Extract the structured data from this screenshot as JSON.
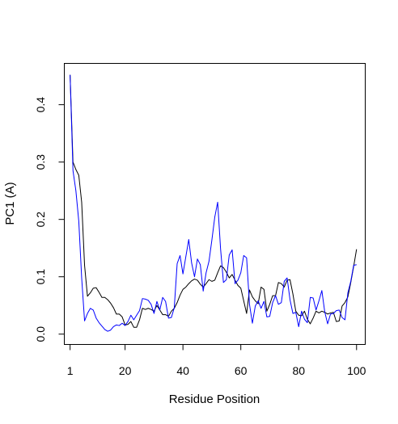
{
  "chart_data": {
    "type": "line",
    "title": "",
    "xlabel": "Residue Position",
    "ylabel": "PC1 (A)",
    "xlim": [
      -1,
      103
    ],
    "ylim": [
      -0.018,
      0.472
    ],
    "xticks": [
      1,
      20,
      40,
      60,
      80,
      100
    ],
    "yticks": [
      0.0,
      0.1,
      0.2,
      0.3,
      0.4
    ],
    "grid": false,
    "legend": "none",
    "x": [
      1,
      2,
      3,
      4,
      5,
      6,
      7,
      8,
      9,
      10,
      11,
      12,
      13,
      14,
      15,
      16,
      17,
      18,
      19,
      20,
      21,
      22,
      23,
      24,
      25,
      26,
      27,
      28,
      29,
      30,
      31,
      32,
      33,
      34,
      35,
      36,
      37,
      38,
      39,
      40,
      41,
      42,
      43,
      44,
      45,
      46,
      47,
      48,
      49,
      50,
      51,
      52,
      53,
      54,
      55,
      56,
      57,
      58,
      59,
      60,
      61,
      62,
      63,
      64,
      65,
      66,
      67,
      68,
      69,
      70,
      71,
      72,
      73,
      74,
      75,
      76,
      77,
      78,
      79,
      80,
      81,
      82,
      83,
      84,
      85,
      86,
      87,
      88,
      89,
      90,
      91,
      92,
      93,
      94,
      95,
      96,
      97,
      98,
      99,
      100
    ],
    "series": [
      {
        "color": "#000000",
        "values": [
          0.452,
          0.3,
          0.287,
          0.277,
          0.23,
          0.12,
          0.066,
          0.072,
          0.08,
          0.081,
          0.073,
          0.064,
          0.064,
          0.06,
          0.054,
          0.046,
          0.035,
          0.035,
          0.03,
          0.016,
          0.017,
          0.022,
          0.012,
          0.012,
          0.025,
          0.045,
          0.043,
          0.045,
          0.043,
          0.04,
          0.05,
          0.042,
          0.034,
          0.034,
          0.031,
          0.04,
          0.045,
          0.055,
          0.068,
          0.078,
          0.082,
          0.088,
          0.093,
          0.096,
          0.094,
          0.087,
          0.082,
          0.088,
          0.095,
          0.092,
          0.094,
          0.107,
          0.119,
          0.116,
          0.108,
          0.098,
          0.104,
          0.094,
          0.085,
          0.08,
          0.058,
          0.036,
          0.077,
          0.065,
          0.058,
          0.053,
          0.082,
          0.078,
          0.04,
          0.052,
          0.067,
          0.067,
          0.09,
          0.088,
          0.082,
          0.094,
          0.095,
          0.07,
          0.04,
          0.033,
          0.032,
          0.04,
          0.026,
          0.018,
          0.028,
          0.04,
          0.037,
          0.04,
          0.038,
          0.035,
          0.037,
          0.038,
          0.022,
          0.023,
          0.049,
          0.055,
          0.065,
          0.09,
          0.118,
          0.148
        ]
      },
      {
        "color": "#0000ff",
        "values": [
          0.452,
          0.285,
          0.25,
          0.197,
          0.098,
          0.023,
          0.036,
          0.045,
          0.042,
          0.028,
          0.02,
          0.014,
          0.008,
          0.005,
          0.007,
          0.013,
          0.016,
          0.015,
          0.019,
          0.015,
          0.022,
          0.033,
          0.025,
          0.033,
          0.041,
          0.062,
          0.061,
          0.059,
          0.052,
          0.036,
          0.057,
          0.042,
          0.064,
          0.057,
          0.028,
          0.029,
          0.046,
          0.123,
          0.137,
          0.105,
          0.135,
          0.165,
          0.124,
          0.1,
          0.131,
          0.121,
          0.075,
          0.107,
          0.127,
          0.164,
          0.204,
          0.23,
          0.149,
          0.09,
          0.095,
          0.138,
          0.147,
          0.088,
          0.094,
          0.107,
          0.137,
          0.133,
          0.052,
          0.019,
          0.049,
          0.058,
          0.045,
          0.057,
          0.03,
          0.031,
          0.055,
          0.067,
          0.052,
          0.055,
          0.092,
          0.098,
          0.06,
          0.036,
          0.038,
          0.013,
          0.04,
          0.026,
          0.02,
          0.064,
          0.063,
          0.042,
          0.058,
          0.076,
          0.039,
          0.018,
          0.035,
          0.036,
          0.041,
          0.042,
          0.029,
          0.025,
          0.072,
          0.092,
          0.12,
          0.121
        ]
      }
    ]
  }
}
